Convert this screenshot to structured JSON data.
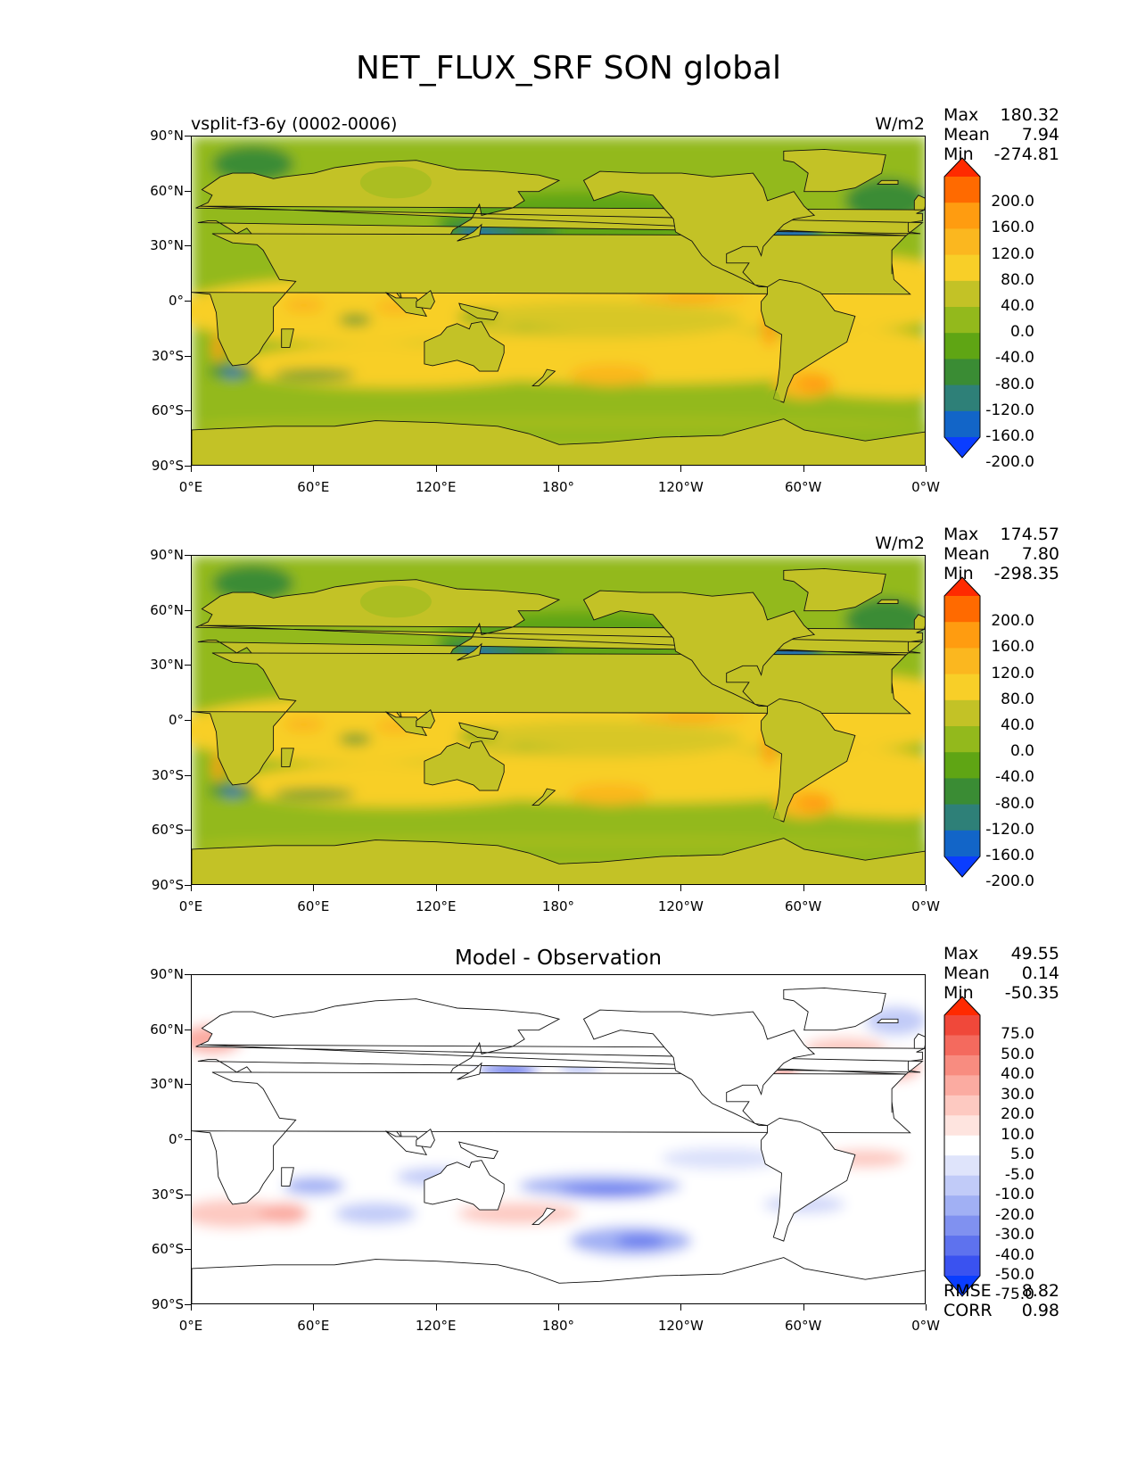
{
  "title": "NET_FLUX_SRF SON global",
  "chart_data": [
    {
      "type": "heatmap",
      "subtitle_left": "vsplit-f3-6y (0002-0006)",
      "units": "W/m2",
      "stats": {
        "max_label": "Max",
        "max": "180.32",
        "mean_label": "Mean",
        "mean": "7.94",
        "min_label": "Min",
        "min": "-274.81"
      },
      "x_ticks": [
        "0°E",
        "60°E",
        "120°E",
        "180°",
        "120°W",
        "60°W",
        "0°W"
      ],
      "y_ticks": [
        "90°N",
        "60°N",
        "30°N",
        "0°",
        "30°S",
        "60°S",
        "90°S"
      ],
      "xlim": [
        0,
        360
      ],
      "ylim": [
        -90,
        90
      ],
      "colorbar": {
        "labels": [
          "200.0",
          "160.0",
          "120.0",
          "80.0",
          "40.0",
          "0.0",
          "-40.0",
          "-80.0",
          "-120.0",
          "-160.0",
          "-200.0"
        ],
        "colors": [
          "#ff2a00",
          "#ff6a00",
          "#ff9c10",
          "#fbb71f",
          "#f8cf28",
          "#c3c226",
          "#93b91c",
          "#5fa514",
          "#3a8c34",
          "#2e8078",
          "#1265c8",
          "#0a3dff"
        ]
      },
      "features": [
        {
          "lon": 142,
          "lat": 36,
          "value": -200
        },
        {
          "lon": 290,
          "lat": 40,
          "value": -200
        },
        {
          "lon": 20,
          "lat": -40,
          "value": -160
        },
        {
          "lon": 235,
          "lat": 2,
          "value": 120
        },
        {
          "lon": 300,
          "lat": -45,
          "value": 120
        },
        {
          "lon": 15,
          "lat": -20,
          "value": 120
        }
      ]
    },
    {
      "type": "heatmap",
      "units": "W/m2",
      "stats": {
        "max_label": "Max",
        "max": "174.57",
        "mean_label": "Mean",
        "mean": "7.80",
        "min_label": "Min",
        "min": "-298.35"
      },
      "x_ticks": [
        "0°E",
        "60°E",
        "120°E",
        "180°",
        "120°W",
        "60°W",
        "0°W"
      ],
      "y_ticks": [
        "90°N",
        "60°N",
        "30°N",
        "0°",
        "30°S",
        "60°S",
        "90°S"
      ],
      "xlim": [
        0,
        360
      ],
      "ylim": [
        -90,
        90
      ],
      "colorbar": {
        "labels": [
          "200.0",
          "160.0",
          "120.0",
          "80.0",
          "40.0",
          "0.0",
          "-40.0",
          "-80.0",
          "-120.0",
          "-160.0",
          "-200.0"
        ],
        "colors": [
          "#ff2a00",
          "#ff6a00",
          "#ff9c10",
          "#fbb71f",
          "#f8cf28",
          "#c3c226",
          "#93b91c",
          "#5fa514",
          "#3a8c34",
          "#2e8078",
          "#1265c8",
          "#0a3dff"
        ]
      },
      "features": [
        {
          "lon": 142,
          "lat": 36,
          "value": -160
        },
        {
          "lon": 290,
          "lat": 40,
          "value": -200
        },
        {
          "lon": 20,
          "lat": -40,
          "value": -160
        },
        {
          "lon": 235,
          "lat": 2,
          "value": 120
        },
        {
          "lon": 300,
          "lat": -45,
          "value": 120
        },
        {
          "lon": 15,
          "lat": -20,
          "value": 120
        }
      ]
    },
    {
      "type": "heatmap",
      "title": "Model - Observation",
      "stats": {
        "max_label": "Max",
        "max": "49.55",
        "mean_label": "Mean",
        "mean": "0.14",
        "min_label": "Min",
        "min": "-50.35"
      },
      "error_stats": {
        "rmse_label": "RMSE",
        "rmse": "8.82",
        "corr_label": "CORR",
        "corr": "0.98"
      },
      "x_ticks": [
        "0°E",
        "60°E",
        "120°E",
        "180°",
        "120°W",
        "60°W",
        "0°W"
      ],
      "y_ticks": [
        "90°N",
        "60°N",
        "30°N",
        "0°",
        "30°S",
        "60°S",
        "90°S"
      ],
      "xlim": [
        0,
        360
      ],
      "ylim": [
        -90,
        90
      ],
      "colorbar": {
        "labels": [
          "75.0",
          "50.0",
          "40.0",
          "30.0",
          "20.0",
          "10.0",
          "5.0",
          "-5.0",
          "-10.0",
          "-20.0",
          "-30.0",
          "-40.0",
          "-50.0",
          "-75.0"
        ],
        "colors": [
          "#ff2a00",
          "#f0483a",
          "#f46a5e",
          "#f88c80",
          "#fbaba1",
          "#fdc9c1",
          "#fee4df",
          "#ffffff",
          "#dfe4fb",
          "#c1cbf8",
          "#a1b0f4",
          "#8091f0",
          "#5e72ee",
          "#3a52f0",
          "#0a3dff"
        ]
      },
      "features": [
        {
          "lon": 155,
          "lat": 38,
          "value": -40
        },
        {
          "lon": 200,
          "lat": -25,
          "value": -40
        },
        {
          "lon": 215,
          "lat": -55,
          "value": -40
        },
        {
          "lon": 290,
          "lat": 30,
          "value": 40
        },
        {
          "lon": 175,
          "lat": 27,
          "value": 30
        },
        {
          "lon": 35,
          "lat": -40,
          "value": 20
        }
      ]
    }
  ]
}
